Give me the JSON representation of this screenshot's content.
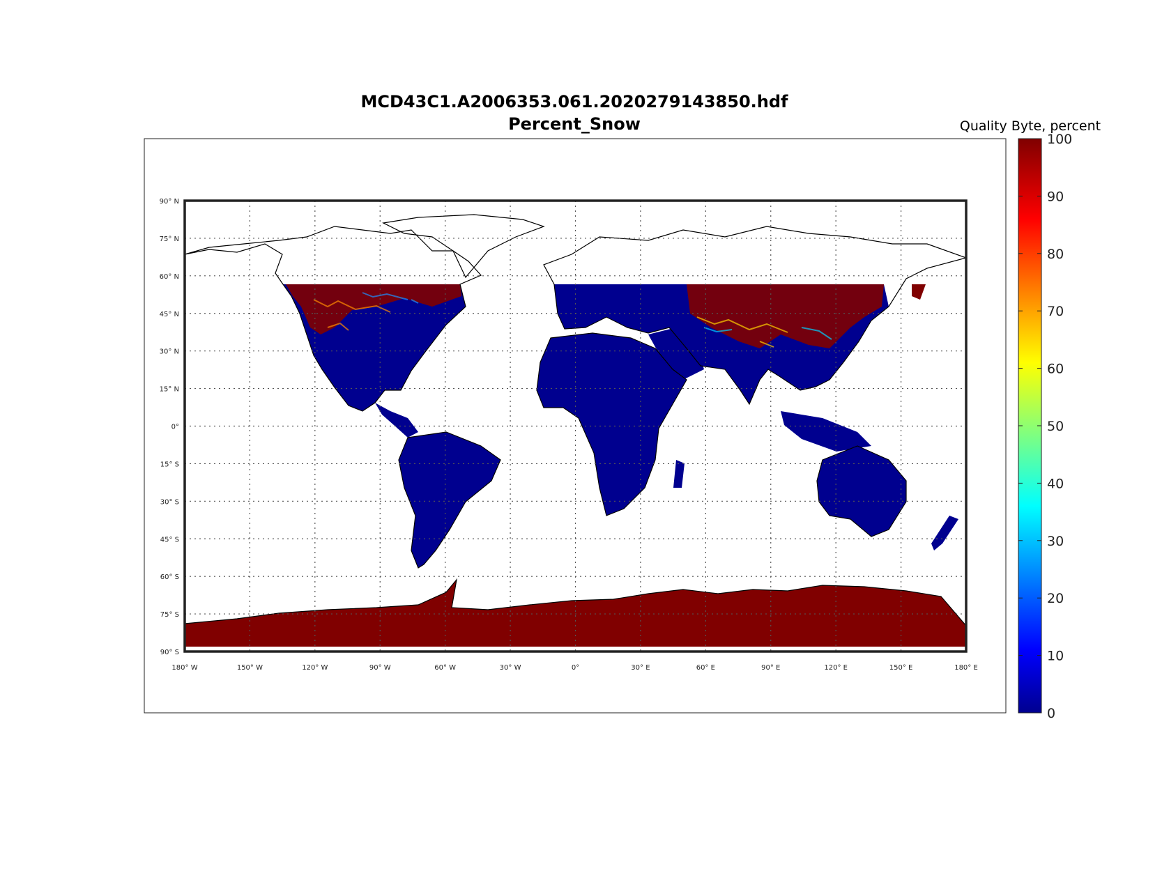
{
  "title": {
    "line1": "MCD43C1.A2006353.061.2020279143850.hdf",
    "line2": "Percent_Snow"
  },
  "map": {
    "projection": "equirectangular",
    "lon_range": [
      -180,
      180
    ],
    "lat_range": [
      -90,
      90
    ],
    "grid": true,
    "colors": {
      "no_data": "#ffffff",
      "low_value": "#00008f",
      "high_value": "#800000",
      "coastline": "#000000",
      "grid": "#555555"
    },
    "lon_ticks": [
      "180° W",
      "150° W",
      "120° W",
      "90° W",
      "60° W",
      "30° W",
      "0°",
      "30° E",
      "60° E",
      "90° E",
      "120° E",
      "150° E",
      "180° E"
    ],
    "lat_ticks": [
      "90° N",
      "75° N",
      "60° N",
      "45° N",
      "30° N",
      "15° N",
      "0°",
      "15° S",
      "30° S",
      "45° S",
      "60° S",
      "75° S",
      "90° S"
    ]
  },
  "colorbar": {
    "title": "Quality Byte, percent",
    "range": [
      0,
      100
    ],
    "colormap": "jet",
    "ticks": [
      "0",
      "10",
      "20",
      "30",
      "40",
      "50",
      "60",
      "70",
      "80",
      "90",
      "100"
    ]
  }
}
